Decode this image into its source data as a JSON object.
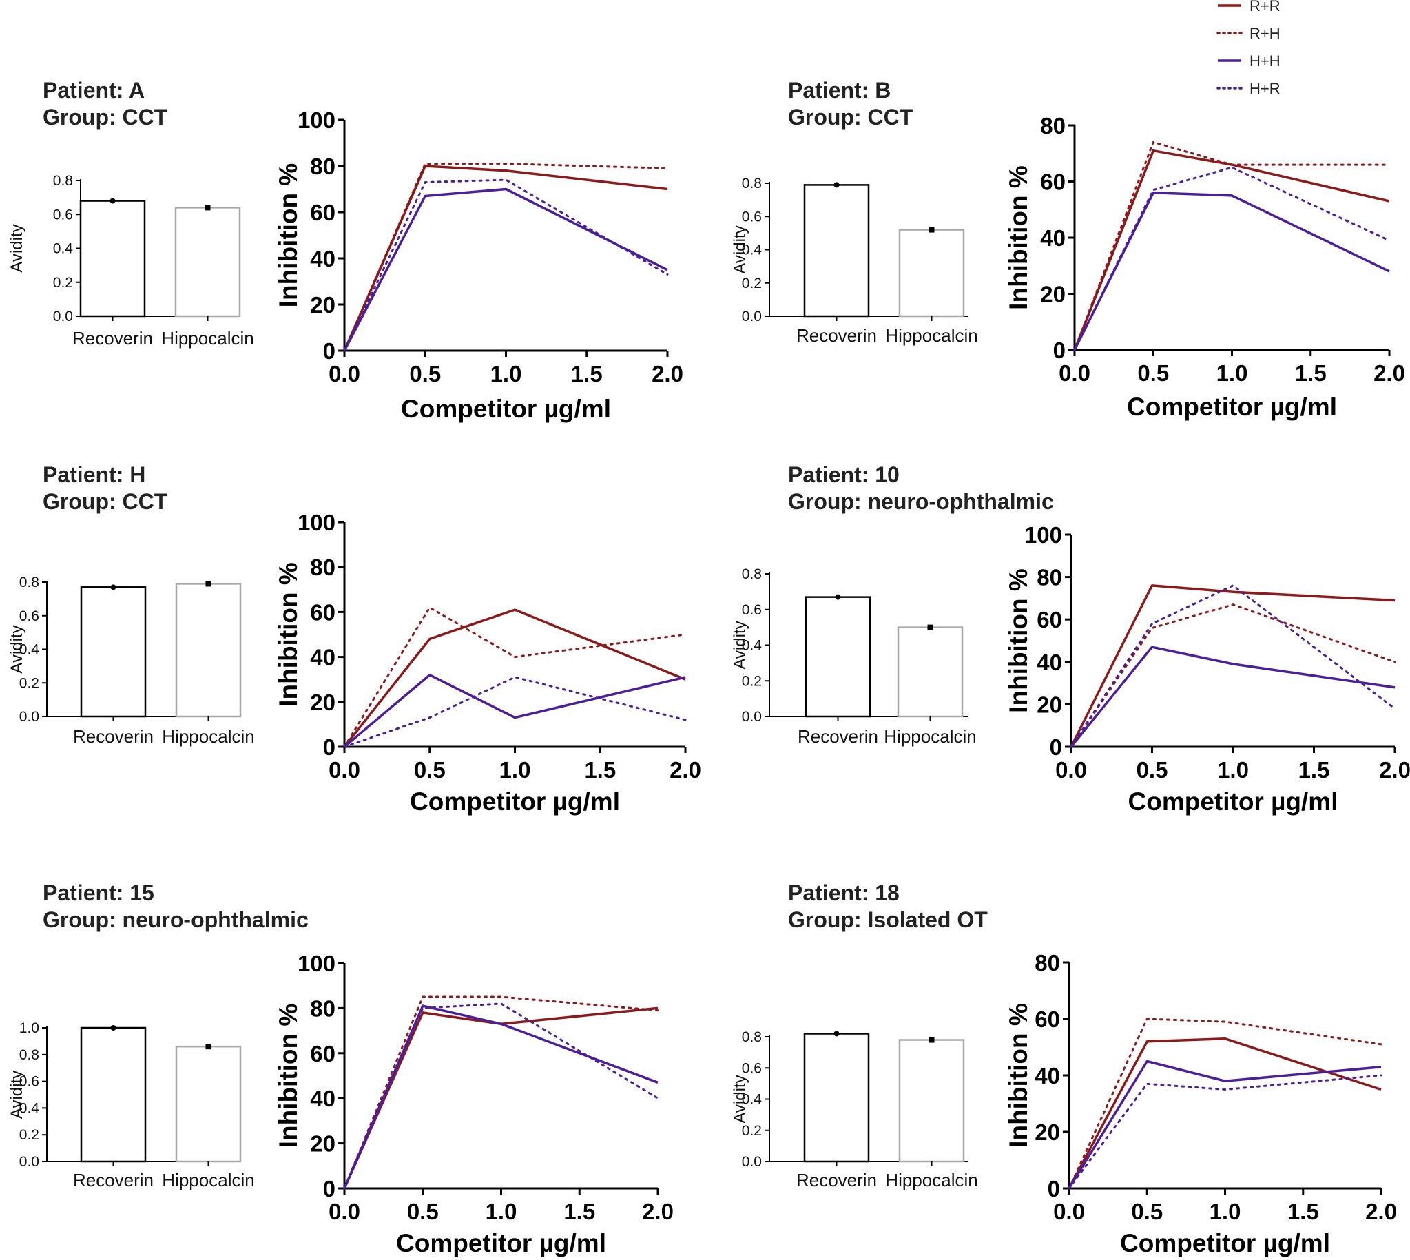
{
  "colors": {
    "R+R": "#8b1a1a",
    "R+H": "#8b1a1a",
    "H+H": "#4b1f9a",
    "H+R": "#4b1f9a",
    "recoverin_bar": "#000000",
    "hippocalcin_bar": "#a8a8a8"
  },
  "legend": [
    {
      "label": "R+R",
      "style": "solid",
      "color": "#8b1a1a"
    },
    {
      "label": "R+H",
      "style": "dotted",
      "color": "#8b1a1a"
    },
    {
      "label": "H+H",
      "style": "solid",
      "color": "#4b1f9a"
    },
    {
      "label": "H+R",
      "style": "dotted",
      "color": "#4b1f9a"
    }
  ],
  "chart_data": [
    {
      "patient_label": "Patient: A",
      "group_label": "Group: CCT",
      "bar": {
        "type": "bar",
        "ylabel": "Avidity",
        "categories": [
          "Recoverin",
          "Hippocalcin"
        ],
        "values": [
          0.68,
          0.64
        ],
        "ylim": [
          0,
          0.8
        ],
        "yticks": [
          "0.0",
          "0.2",
          "0.4",
          "0.6",
          "0.8"
        ]
      },
      "line": {
        "type": "line",
        "xlabel": "Competitor µg/ml",
        "ylabel": "Inhibition %",
        "x": [
          0,
          0.5,
          1.0,
          2.0
        ],
        "xticks": [
          "0.0",
          "0.5",
          "1.0",
          "1.5",
          "2.0"
        ],
        "ylim": [
          0,
          100
        ],
        "yticks": [
          "0",
          "20",
          "40",
          "60",
          "80",
          "100"
        ],
        "series": [
          {
            "name": "R+R",
            "values": [
              0,
              80,
              78,
              70
            ]
          },
          {
            "name": "R+H",
            "values": [
              0,
              81,
              81,
              79
            ]
          },
          {
            "name": "H+H",
            "values": [
              0,
              67,
              70,
              35
            ]
          },
          {
            "name": "H+R",
            "values": [
              0,
              73,
              74,
              33
            ]
          }
        ]
      }
    },
    {
      "patient_label": "Patient: B",
      "group_label": "Group: CCT",
      "bar": {
        "type": "bar",
        "ylabel": "Avidity",
        "categories": [
          "Recoverin",
          "Hippocalcin"
        ],
        "values": [
          0.79,
          0.52
        ],
        "ylim": [
          0,
          0.8
        ],
        "yticks": [
          "0.0",
          "0.2",
          "0.4",
          "0.6",
          "0.8"
        ]
      },
      "line": {
        "type": "line",
        "xlabel": "Competitor µg/ml",
        "ylabel": "Inhibition %",
        "x": [
          0,
          0.5,
          1.0,
          2.0
        ],
        "xticks": [
          "0.0",
          "0.5",
          "1.0",
          "1.5",
          "2.0"
        ],
        "ylim": [
          0,
          80
        ],
        "yticks": [
          "0",
          "20",
          "40",
          "60",
          "80"
        ],
        "series": [
          {
            "name": "R+R",
            "values": [
              0,
              71,
              66,
              53
            ]
          },
          {
            "name": "R+H",
            "values": [
              0,
              74,
              66,
              66
            ]
          },
          {
            "name": "H+H",
            "values": [
              0,
              56,
              55,
              28
            ]
          },
          {
            "name": "H+R",
            "values": [
              0,
              57,
              65,
              39
            ]
          }
        ]
      }
    },
    {
      "patient_label": "Patient: H",
      "group_label": "Group: CCT",
      "bar": {
        "type": "bar",
        "ylabel": "Avidity",
        "categories": [
          "Recoverin",
          "Hippocalcin"
        ],
        "values": [
          0.77,
          0.79
        ],
        "ylim": [
          0,
          0.8
        ],
        "yticks": [
          "0.0",
          "0.2",
          "0.4",
          "0.6",
          "0.8"
        ]
      },
      "line": {
        "type": "line",
        "xlabel": "Competitor µg/ml",
        "ylabel": "Inhibition %",
        "x": [
          0,
          0.5,
          1.0,
          2.0
        ],
        "xticks": [
          "0.0",
          "0.5",
          "1.0",
          "1.5",
          "2.0"
        ],
        "ylim": [
          0,
          100
        ],
        "yticks": [
          "0",
          "20",
          "40",
          "60",
          "80",
          "100"
        ],
        "series": [
          {
            "name": "R+R",
            "values": [
              0,
              48,
              61,
              30
            ]
          },
          {
            "name": "R+H",
            "values": [
              0,
              62,
              40,
              50
            ]
          },
          {
            "name": "H+H",
            "values": [
              0,
              32,
              13,
              31
            ]
          },
          {
            "name": "H+R",
            "values": [
              0,
              13,
              31,
              12
            ]
          }
        ]
      }
    },
    {
      "patient_label": "Patient: 10",
      "group_label": "Group: neuro-ophthalmic",
      "bar": {
        "type": "bar",
        "ylabel": "Avidity",
        "categories": [
          "Recoverin",
          "Hippocalcin"
        ],
        "values": [
          0.67,
          0.5
        ],
        "ylim": [
          0,
          0.8
        ],
        "yticks": [
          "0.0",
          "0.2",
          "0.4",
          "0.6",
          "0.8"
        ]
      },
      "line": {
        "type": "line",
        "xlabel": "Competitor µg/ml",
        "ylabel": "Inhibition %",
        "x": [
          0,
          0.5,
          1.0,
          2.0
        ],
        "xticks": [
          "0.0",
          "0.5",
          "1.0",
          "1.5",
          "2.0"
        ],
        "ylim": [
          0,
          100
        ],
        "yticks": [
          "0",
          "20",
          "40",
          "60",
          "80",
          "100"
        ],
        "series": [
          {
            "name": "R+R",
            "values": [
              0,
              76,
              73,
              69
            ]
          },
          {
            "name": "R+H",
            "values": [
              0,
              56,
              67,
              40
            ]
          },
          {
            "name": "H+H",
            "values": [
              0,
              47,
              39,
              28
            ]
          },
          {
            "name": "H+R",
            "values": [
              0,
              58,
              76,
              18
            ]
          }
        ]
      }
    },
    {
      "patient_label": "Patient: 15",
      "group_label": "Group: neuro-ophthalmic",
      "bar": {
        "type": "bar",
        "ylabel": "Avidity",
        "categories": [
          "Recoverin",
          "Hippocalcin"
        ],
        "values": [
          1.0,
          0.86
        ],
        "ylim": [
          0,
          1.0
        ],
        "yticks": [
          "0.0",
          "0.2",
          "0.4",
          "0.6",
          "0.8",
          "1.0"
        ]
      },
      "line": {
        "type": "line",
        "xlabel": "Competitor µg/ml",
        "ylabel": "Inhibition %",
        "x": [
          0,
          0.5,
          1.0,
          2.0
        ],
        "xticks": [
          "0.0",
          "0.5",
          "1.0",
          "1.5",
          "2.0"
        ],
        "ylim": [
          0,
          100
        ],
        "yticks": [
          "0",
          "20",
          "40",
          "60",
          "80",
          "100"
        ],
        "series": [
          {
            "name": "R+R",
            "values": [
              0,
              78,
              73,
              80
            ]
          },
          {
            "name": "R+H",
            "values": [
              0,
              85,
              85,
              79
            ]
          },
          {
            "name": "H+H",
            "values": [
              0,
              81,
              73,
              47
            ]
          },
          {
            "name": "H+R",
            "values": [
              0,
              80,
              82,
              40
            ]
          }
        ]
      }
    },
    {
      "patient_label": "Patient: 18",
      "group_label": "Group: Isolated OT",
      "bar": {
        "type": "bar",
        "ylabel": "Avidity",
        "categories": [
          "Recoverin",
          "Hippocalcin"
        ],
        "values": [
          0.82,
          0.78
        ],
        "ylim": [
          0,
          0.8
        ],
        "yticks": [
          "0.0",
          "0.2",
          "0.4",
          "0.6",
          "0.8"
        ]
      },
      "line": {
        "type": "line",
        "xlabel": "Competitor µg/ml",
        "ylabel": "Inhibition %",
        "x": [
          0,
          0.5,
          1.0,
          2.0
        ],
        "xticks": [
          "0.0",
          "0.5",
          "1.0",
          "1.5",
          "2.0"
        ],
        "ylim": [
          0,
          80
        ],
        "yticks": [
          "0",
          "20",
          "40",
          "60",
          "80"
        ],
        "series": [
          {
            "name": "R+R",
            "values": [
              0,
              52,
              53,
              35
            ]
          },
          {
            "name": "R+H",
            "values": [
              0,
              60,
              59,
              51
            ]
          },
          {
            "name": "H+H",
            "values": [
              0,
              45,
              38,
              43
            ]
          },
          {
            "name": "H+R",
            "values": [
              0,
              37,
              35,
              40
            ]
          }
        ]
      }
    }
  ]
}
